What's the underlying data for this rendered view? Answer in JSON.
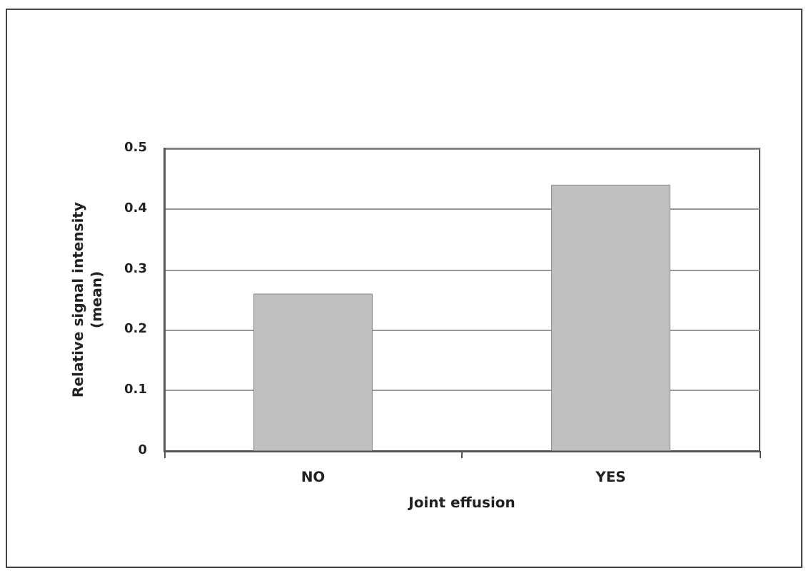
{
  "chart_data": {
    "type": "bar",
    "xlabel": "Joint effusion",
    "ylabel": "Relative signal intensity\n(mean)",
    "categories": [
      "NO",
      "YES"
    ],
    "values": [
      0.26,
      0.44
    ],
    "color": "#c0c0c0",
    "ylim": [
      0,
      0.5
    ],
    "yticks": [
      0,
      0.1,
      0.2,
      0.3,
      0.4,
      0.5
    ],
    "grid": "y"
  }
}
